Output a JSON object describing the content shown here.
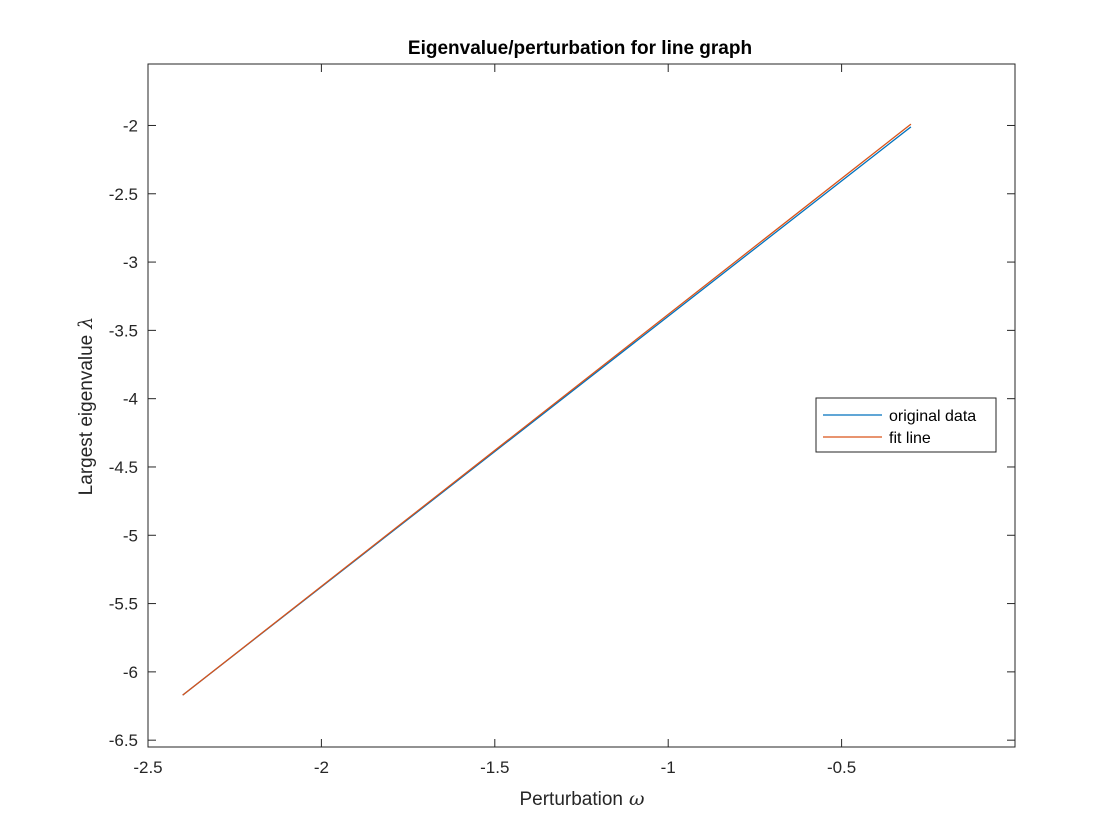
{
  "chart_data": {
    "type": "line",
    "title": "Eigenvalue/perturbation for line graph",
    "xlabel": "Perturbation",
    "xlabel_symbol": "ω",
    "ylabel": "Largest eigenvalue",
    "ylabel_symbol": "λ",
    "xlim": [
      -2.5,
      0
    ],
    "ylim": [
      -6.55,
      -1.55
    ],
    "xticks": [
      -2.5,
      -2,
      -1.5,
      -1,
      -0.5
    ],
    "xtick_labels": [
      "-2.5",
      "-2",
      "-1.5",
      "-1",
      "-0.5"
    ],
    "yticks": [
      -6.5,
      -6,
      -5.5,
      -5,
      -4.5,
      -4,
      -3.5,
      -3,
      -2.5,
      -2
    ],
    "ytick_labels": [
      "-6.5",
      "-6",
      "-5.5",
      "-5",
      "-4.5",
      "-4",
      "-3.5",
      "-3",
      "-2.5",
      "-2"
    ],
    "grid": false,
    "legend_position": "right",
    "series": [
      {
        "name": "original data",
        "color": "#0072BD",
        "x": [
          -2.4,
          -0.3
        ],
        "y": [
          -6.17,
          -2.01
        ]
      },
      {
        "name": "fit line",
        "color": "#D95319",
        "x": [
          -2.4,
          -0.3
        ],
        "y": [
          -6.17,
          -1.99
        ]
      }
    ]
  }
}
